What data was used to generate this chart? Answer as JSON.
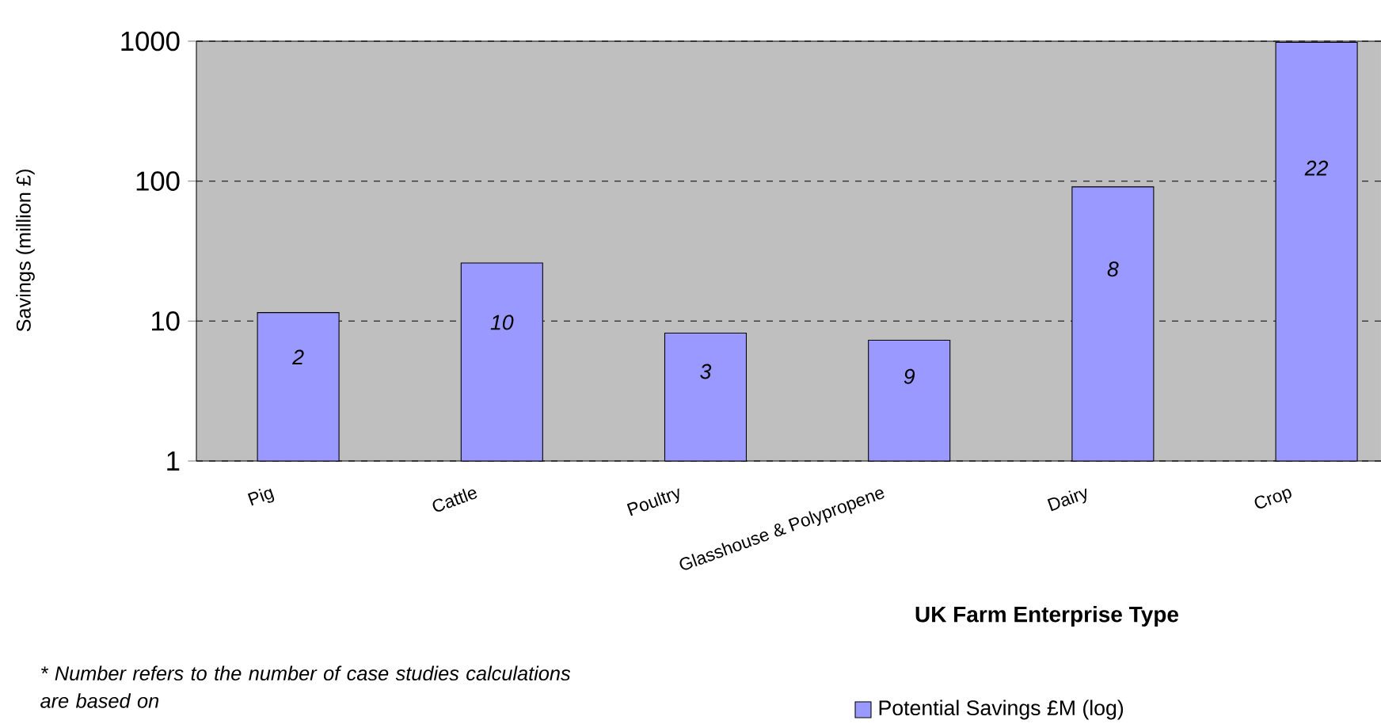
{
  "chart_data": {
    "type": "bar",
    "ylabel": "Savings (million £)",
    "xlabel": "UK Farm Enterprise Type",
    "categories": [
      "Pig",
      "Cattle",
      "Poultry",
      "Glasshouse & Polypropene",
      "Dairy",
      "Crop"
    ],
    "series": [
      {
        "name": "Potential Savings £M (log)",
        "color": "#9999ff",
        "values": [
          11.5,
          26,
          8.2,
          7.3,
          91,
          980
        ]
      }
    ],
    "log": "y",
    "ylim": [
      1,
      1000
    ],
    "yticks": [
      1,
      10,
      100,
      1000
    ],
    "grid": "y",
    "legend": "bottom right",
    "annotations": [
      "2",
      "10",
      "3",
      "9",
      "8",
      "22",
      "* Number refers to the number of case studies calculations are based on"
    ]
  }
}
